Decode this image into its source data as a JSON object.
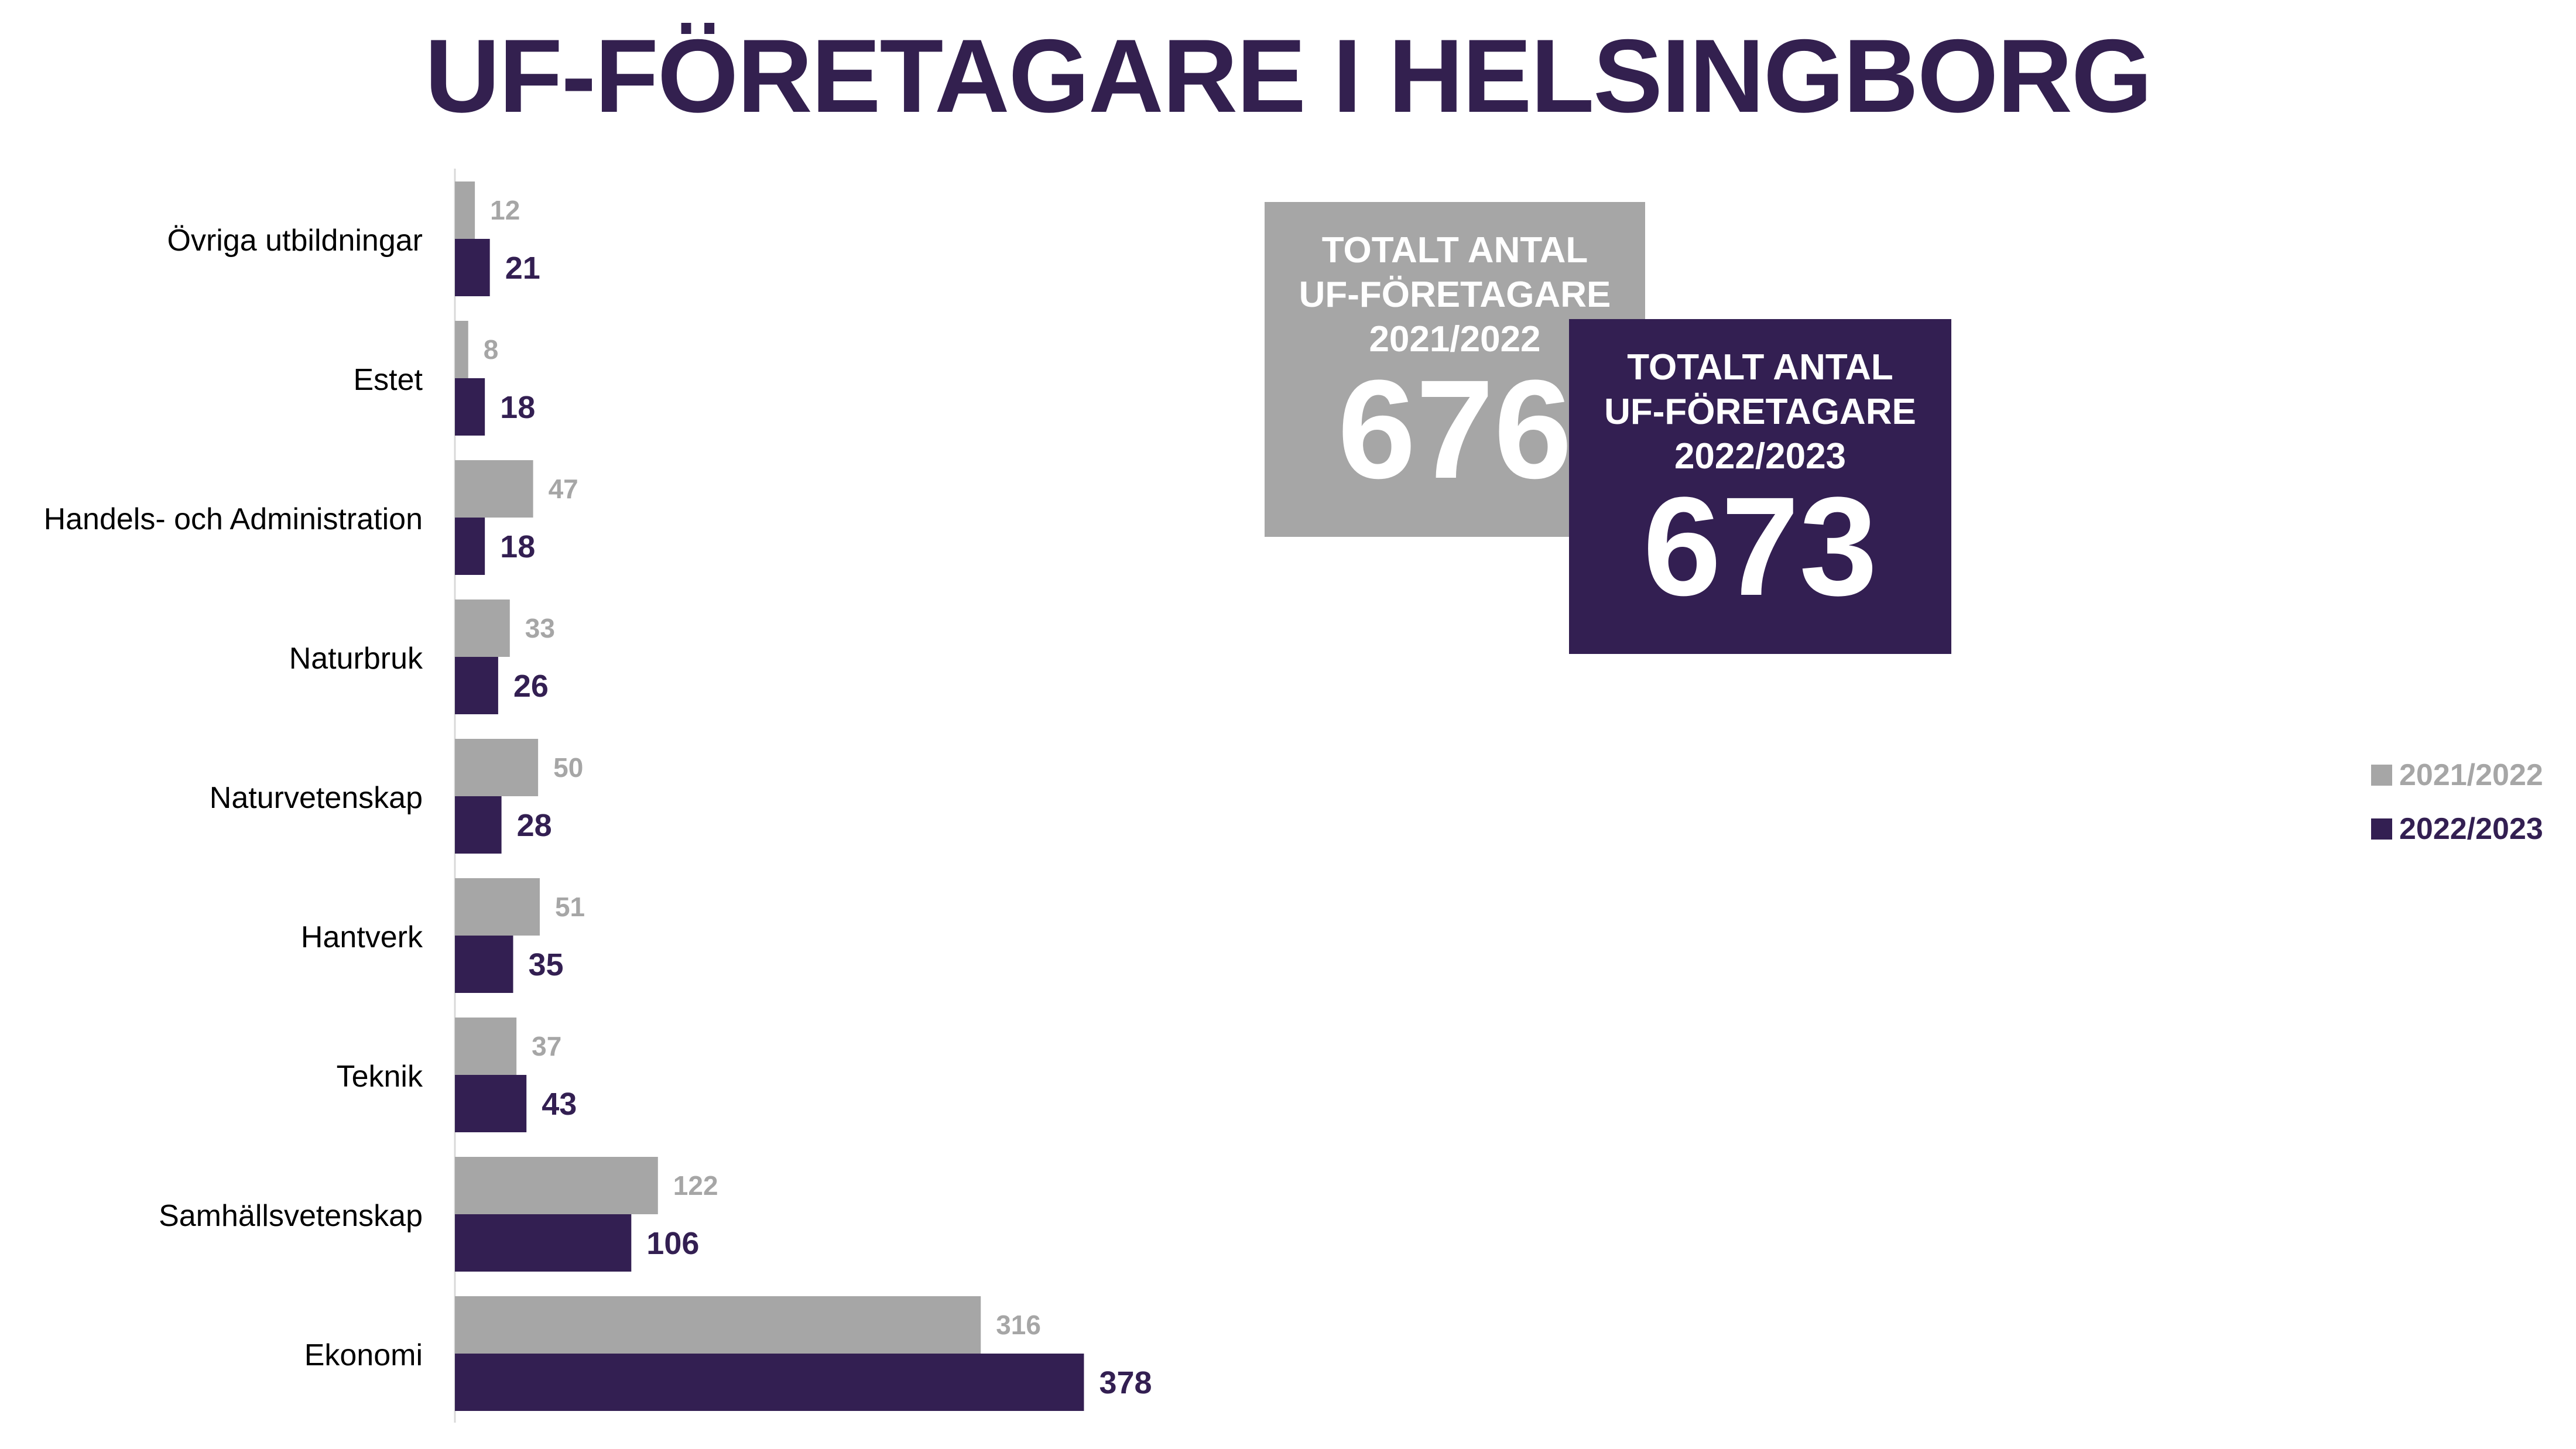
{
  "title": "UF-FÖRETAGARE I HELSINGBORG",
  "colors": {
    "title": "#33204f",
    "series_2021": "#a6a6a6",
    "series_2022": "#331f52"
  },
  "totals": [
    {
      "label": "TOTALT ANTAL\nUF-FÖRETAGARE\n2021/2022",
      "value": "676"
    },
    {
      "label": "TOTALT ANTAL\nUF-FÖRETAGARE\n2022/2023",
      "value": "673"
    }
  ],
  "legend": [
    "2021/2022",
    "2022/2023"
  ],
  "chart_data": {
    "type": "bar",
    "orientation": "horizontal",
    "categories": [
      "Övriga utbildningar",
      "Estet",
      "Handels- och Administration",
      "Naturbruk",
      "Naturvetenskap",
      "Hantverk",
      "Teknik",
      "Samhällsvetenskap",
      "Ekonomi"
    ],
    "series": [
      {
        "name": "2021/2022",
        "values": [
          12,
          8,
          47,
          33,
          50,
          51,
          37,
          122,
          316
        ]
      },
      {
        "name": "2022/2023",
        "values": [
          21,
          18,
          18,
          26,
          28,
          35,
          43,
          106,
          378
        ]
      }
    ],
    "title": "UF-FÖRETAGARE I HELSINGBORG",
    "xlabel": "",
    "ylabel": "",
    "xlim": [
      0,
      400
    ],
    "grid": false,
    "legend_position": "right"
  }
}
